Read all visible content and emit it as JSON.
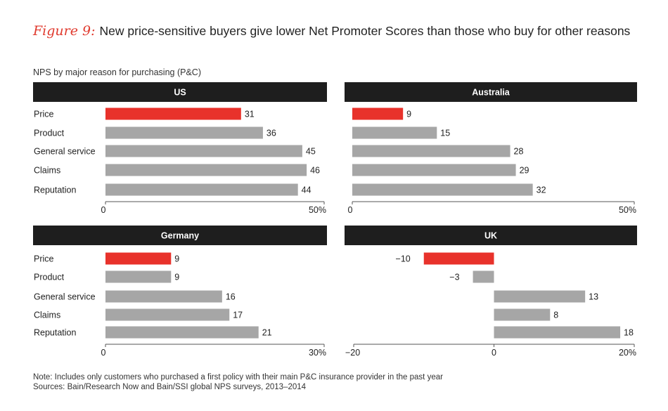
{
  "title": {
    "figure_label": "Figure 9:",
    "text": "New price-sensitive buyers give lower Net Promoter Scores than those who buy for other reasons"
  },
  "subtitle": "NPS by major reason for purchasing (P&C)",
  "notes": {
    "note": "Note: Includes only customers who purchased a first policy with their main P&C insurance provider in the past year",
    "sources": "Sources: Bain/Research Now and Bain/SSI global NPS surveys, 2013–2014"
  },
  "colors": {
    "highlight": "#e8322b",
    "bar": "#a6a6a6",
    "header": "#1e1e1e",
    "axis": "#555555"
  },
  "chart_data": [
    {
      "type": "bar",
      "orientation": "horizontal",
      "title": "US",
      "categories": [
        "Price",
        "Product",
        "General service",
        "Claims",
        "Reputation"
      ],
      "values": [
        31,
        36,
        45,
        46,
        44
      ],
      "highlight_index": 0,
      "xlim": [
        0,
        50
      ],
      "ticks": [
        {
          "value": 0,
          "label": "0"
        },
        {
          "value": 50,
          "label": "50%"
        }
      ]
    },
    {
      "type": "bar",
      "orientation": "horizontal",
      "title": "Australia",
      "categories": [
        "Price",
        "Product",
        "General service",
        "Claims",
        "Reputation"
      ],
      "values": [
        9,
        15,
        28,
        29,
        32
      ],
      "highlight_index": 0,
      "xlim": [
        0,
        50
      ],
      "ticks": [
        {
          "value": 0,
          "label": "0"
        },
        {
          "value": 50,
          "label": "50%"
        }
      ]
    },
    {
      "type": "bar",
      "orientation": "horizontal",
      "title": "Germany",
      "categories": [
        "Price",
        "Product",
        "General service",
        "Claims",
        "Reputation"
      ],
      "values": [
        9,
        9,
        16,
        17,
        21
      ],
      "highlight_index": 0,
      "xlim": [
        0,
        30
      ],
      "ticks": [
        {
          "value": 0,
          "label": "0"
        },
        {
          "value": 30,
          "label": "30%"
        }
      ]
    },
    {
      "type": "bar",
      "orientation": "horizontal",
      "title": "UK",
      "categories": [
        "Price",
        "Product",
        "General service",
        "Claims",
        "Reputation"
      ],
      "values": [
        -10,
        -3,
        13,
        8,
        18
      ],
      "value_labels": [
        "−10",
        "−3",
        "13",
        "8",
        "18"
      ],
      "highlight_index": 0,
      "xlim": [
        -20,
        20
      ],
      "ticks": [
        {
          "value": -20,
          "label": "−20"
        },
        {
          "value": 0,
          "label": "0"
        },
        {
          "value": 20,
          "label": "20%"
        }
      ]
    }
  ]
}
